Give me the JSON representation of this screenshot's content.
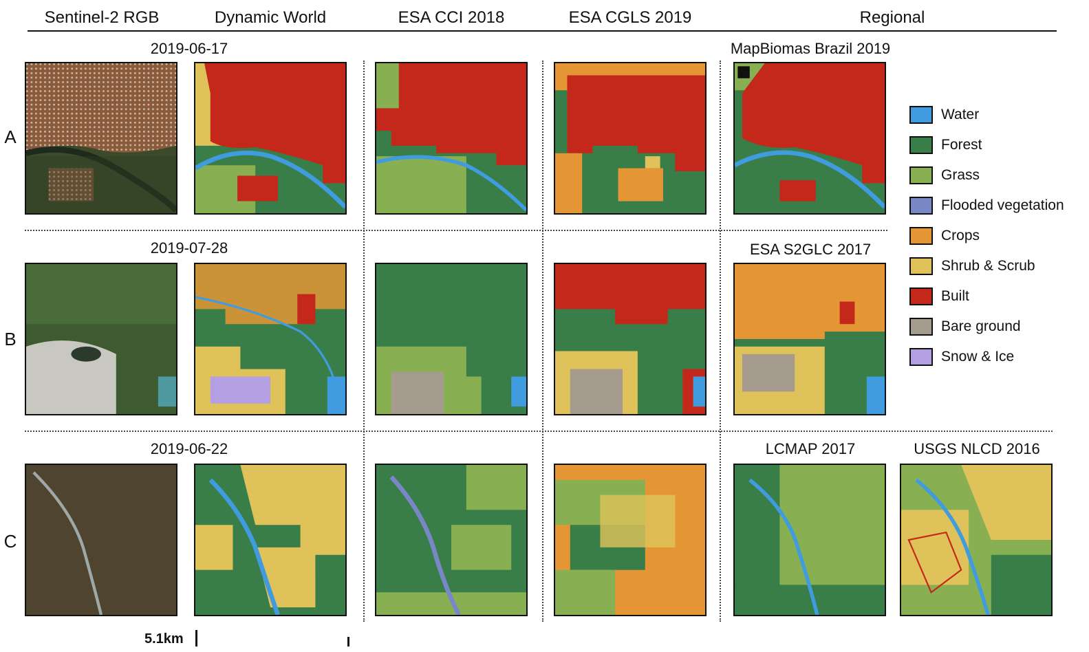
{
  "column_headers": {
    "sentinel": "Sentinel-2 RGB",
    "dynamic_world": "Dynamic World",
    "esa_cci": "ESA CCI 2018",
    "esa_cgls": "ESA CGLS 2019",
    "regional": "Regional"
  },
  "rows": [
    {
      "label": "A",
      "date": "2019-06-17",
      "regional": [
        "MapBiomas Brazil 2019"
      ]
    },
    {
      "label": "B",
      "date": "2019-07-28",
      "regional": [
        "ESA S2GLC 2017"
      ]
    },
    {
      "label": "C",
      "date": "2019-06-22",
      "regional": [
        "LCMAP 2017",
        "USGS NLCD 2016"
      ]
    }
  ],
  "legend": [
    {
      "label": "Water",
      "color": "#419bdf"
    },
    {
      "label": "Forest",
      "color": "#397d49"
    },
    {
      "label": "Grass",
      "color": "#88b053"
    },
    {
      "label": "Flooded vegetation",
      "color": "#7a87c6"
    },
    {
      "label": "Crops",
      "color": "#e49635"
    },
    {
      "label": "Shrub & Scrub",
      "color": "#dfc35a"
    },
    {
      "label": "Built",
      "color": "#c4281b"
    },
    {
      "label": "Bare ground",
      "color": "#a59b8f"
    },
    {
      "label": "Snow & Ice",
      "color": "#b39fe1"
    }
  ],
  "scale_bar": "5.1km"
}
